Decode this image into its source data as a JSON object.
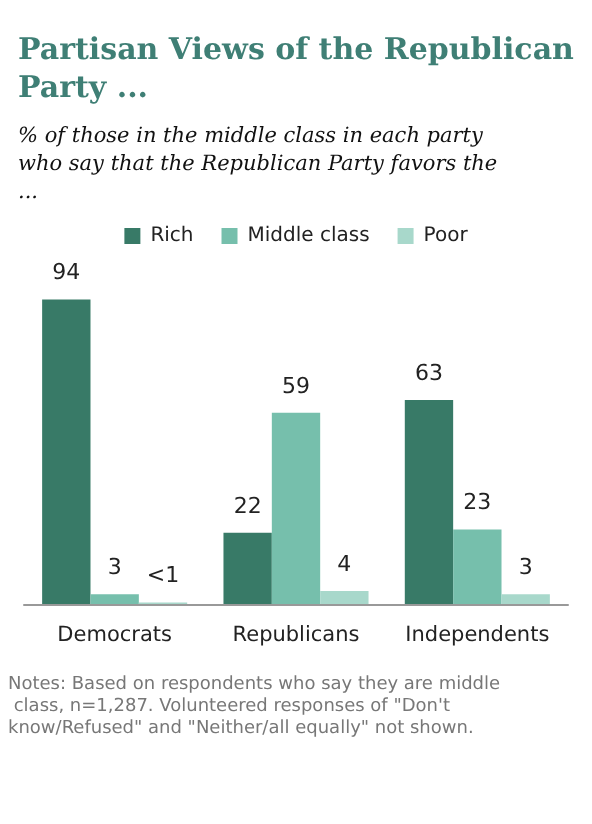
{
  "chart_data": {
    "type": "bar",
    "title": "Partisan Views of the Republican Party ...",
    "subtitle": "% of those in the middle class in each party who say that the Republican Party favors the ...",
    "categories": [
      "Democrats",
      "Republicans",
      "Independents"
    ],
    "series": [
      {
        "name": "Rich",
        "color": "#387a67",
        "values": [
          94,
          22,
          63
        ],
        "value_labels": [
          "94",
          "22",
          "63"
        ]
      },
      {
        "name": "Middle class",
        "color": "#76bfac",
        "values": [
          3,
          59,
          23
        ],
        "value_labels": [
          "3",
          "59",
          "23"
        ]
      },
      {
        "name": "Poor",
        "color": "#a8d8cb",
        "values": [
          0.5,
          4,
          3
        ],
        "value_labels": [
          "<1",
          "4",
          "3"
        ]
      }
    ],
    "legend": "top",
    "annotations": [
      "Notes: Based on respondents who say they are middle class, n=1,287. Volunteered responses of \"Don't know/Refused\" and \"Neither/all equally\" not shown."
    ]
  }
}
